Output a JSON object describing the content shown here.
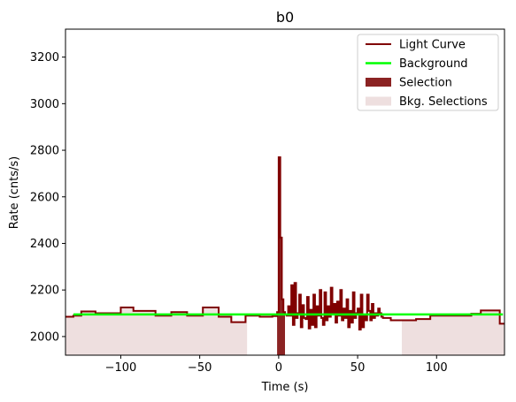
{
  "chart_data": {
    "type": "line",
    "title": "b0",
    "xlabel": "Time (s)",
    "ylabel": "Rate (cnts/s)",
    "xlim": [
      -135,
      143
    ],
    "ylim": [
      1920,
      3320
    ],
    "xticks": [
      -100,
      -50,
      0,
      50,
      100
    ],
    "xtick_labels": [
      "−100",
      "−50",
      "0",
      "50",
      "100"
    ],
    "yticks": [
      2000,
      2200,
      2400,
      2600,
      2800,
      3000,
      3200
    ],
    "ytick_labels": [
      "2000",
      "2200",
      "2400",
      "2600",
      "2800",
      "3000",
      "3200"
    ],
    "grid": false,
    "legend_position": "top-right",
    "legend": [
      {
        "label": "Light Curve",
        "kind": "line",
        "color": "#800000"
      },
      {
        "label": "Background",
        "kind": "line",
        "color": "#00ff00"
      },
      {
        "label": "Selection",
        "kind": "patch",
        "color": "#8b2323"
      },
      {
        "label": "Bkg. Selections",
        "kind": "patch",
        "color": "#eedfdf"
      }
    ],
    "background": {
      "x": [
        -130,
        142
      ],
      "y": [
        2095,
        2095
      ],
      "color": "#00ff00"
    },
    "selection": {
      "x_range": [
        -1,
        4
      ],
      "color": "#8b2323"
    },
    "bkg_selections": [
      {
        "x_range": [
          -135,
          -20
        ]
      },
      {
        "x_range": [
          78,
          143
        ]
      }
    ],
    "light_curve": {
      "color": "#800000",
      "edges": [
        -135,
        -130,
        -125,
        -116,
        -108,
        -100,
        -92,
        -78,
        -68,
        -58,
        -48,
        -38,
        -30,
        -21,
        -12,
        -4,
        -1,
        0,
        1,
        2,
        3,
        4,
        5,
        6,
        7,
        8,
        9,
        10,
        11,
        12,
        13,
        14,
        15,
        16,
        17,
        18,
        19,
        20,
        21,
        22,
        23,
        24,
        25,
        26,
        27,
        28,
        29,
        30,
        31,
        32,
        33,
        34,
        35,
        36,
        37,
        38,
        39,
        40,
        41,
        42,
        43,
        44,
        45,
        46,
        47,
        48,
        49,
        50,
        51,
        52,
        53,
        54,
        55,
        56,
        57,
        58,
        59,
        60,
        61,
        62,
        63,
        64,
        65,
        66,
        71,
        78,
        87,
        96,
        107,
        122,
        128,
        140,
        143
      ],
      "values": [
        2085,
        2090,
        2108,
        2100,
        2100,
        2125,
        2110,
        2090,
        2105,
        2090,
        2125,
        2085,
        2062,
        2090,
        2085,
        2088,
        2105,
        2770,
        2425,
        2160,
        2105,
        2095,
        2090,
        2130,
        2090,
        2220,
        2050,
        2230,
        2080,
        2100,
        2180,
        2040,
        2135,
        2080,
        2075,
        2170,
        2035,
        2115,
        2050,
        2180,
        2040,
        2130,
        2090,
        2200,
        2080,
        2050,
        2190,
        2070,
        2130,
        2085,
        2210,
        2100,
        2140,
        2060,
        2150,
        2090,
        2200,
        2070,
        2120,
        2080,
        2160,
        2040,
        2110,
        2060,
        2190,
        2080,
        2100,
        2120,
        2030,
        2180,
        2040,
        2090,
        2070,
        2180,
        2110,
        2070,
        2140,
        2080,
        2100,
        2090,
        2120,
        2100,
        2085,
        2080,
        2070,
        2070,
        2075,
        2090,
        2090,
        2098,
        2112,
        2055,
        2055
      ]
    }
  }
}
